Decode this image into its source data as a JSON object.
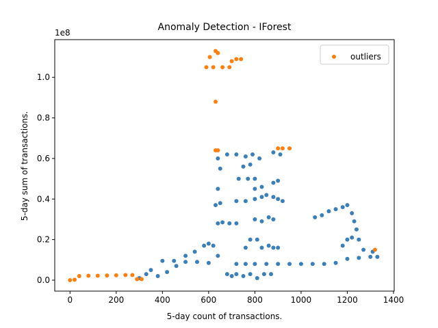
{
  "chart_data": {
    "type": "scatter",
    "title": "Anomaly Detection - IForest",
    "x_label": "5-day count of transactions.",
    "y_label": "5-day sum of transactions.",
    "y_offset_label": "1e8",
    "xlim": [
      -66,
      1403
    ],
    "ylim": [
      -0.054,
      1.186
    ],
    "xticks": [
      0,
      200,
      400,
      600,
      800,
      1000,
      1200,
      1400
    ],
    "yticks": [
      {
        "value": 0,
        "label": "0.0"
      },
      {
        "value": 0.2,
        "label": "0.2"
      },
      {
        "value": 0.4,
        "label": "0.4"
      },
      {
        "value": 0.6,
        "label": "0.6"
      },
      {
        "value": 0.8,
        "label": "0.8"
      },
      {
        "value": 1.0,
        "label": "1.0"
      }
    ],
    "legend_position": "upper right",
    "series": [
      {
        "color": "#3b7fb8",
        "x": [
          720,
          760,
          800,
          850,
          900,
          950,
          1000,
          1050,
          1100,
          1150,
          1200,
          1250,
          1300,
          1330,
          400,
          450,
          500,
          550,
          600,
          300,
          330,
          350,
          380,
          420,
          460,
          500,
          540,
          580,
          600,
          620,
          640,
          680,
          700,
          720,
          750,
          780,
          810,
          840,
          870,
          760,
          830,
          860,
          880,
          900,
          780,
          810,
          640,
          660,
          690,
          720,
          800,
          830,
          860,
          880,
          630,
          650,
          720,
          760,
          800,
          830,
          850,
          880,
          900,
          920,
          640,
          800,
          830,
          730,
          770,
          800,
          880,
          900,
          650,
          750,
          780,
          640,
          680,
          720,
          760,
          790,
          820,
          880,
          910,
          1060,
          1090,
          1120,
          1150,
          1180,
          1200,
          1220,
          1230,
          1240,
          1200,
          1180,
          1220,
          1250,
          1270,
          1310
        ],
        "y": [
          0.08,
          0.08,
          0.08,
          0.08,
          0.08,
          0.08,
          0.08,
          0.08,
          0.08,
          0.085,
          0.105,
          0.11,
          0.115,
          0.115,
          0.095,
          0.095,
          0.09,
          0.09,
          0.085,
          0.01,
          0.03,
          0.05,
          0.02,
          0.04,
          0.07,
          0.12,
          0.14,
          0.17,
          0.18,
          0.17,
          0.12,
          0.03,
          0.02,
          0.03,
          0.02,
          0.03,
          0.01,
          0.03,
          0.03,
          0.16,
          0.16,
          0.17,
          0.16,
          0.16,
          0.2,
          0.2,
          0.28,
          0.285,
          0.28,
          0.28,
          0.3,
          0.29,
          0.31,
          0.3,
          0.37,
          0.38,
          0.39,
          0.39,
          0.4,
          0.41,
          0.42,
          0.41,
          0.4,
          0.39,
          0.45,
          0.45,
          0.46,
          0.5,
          0.5,
          0.5,
          0.48,
          0.49,
          0.55,
          0.56,
          0.57,
          0.6,
          0.62,
          0.62,
          0.61,
          0.62,
          0.6,
          0.63,
          0.62,
          0.31,
          0.32,
          0.34,
          0.35,
          0.36,
          0.37,
          0.33,
          0.29,
          0.25,
          0.2,
          0.17,
          0.21,
          0.2,
          0.15,
          0.14
        ]
      },
      {
        "name": "outliers",
        "color": "#ff7f0e",
        "x": [
          0,
          20,
          40,
          80,
          120,
          160,
          200,
          240,
          270,
          290,
          310,
          590,
          620,
          630,
          640,
          660,
          690,
          700,
          720,
          740,
          605,
          630,
          630,
          640,
          900,
          920,
          950,
          1320
        ],
        "y": [
          0,
          0.002,
          0.02,
          0.022,
          0.022,
          0.023,
          0.024,
          0.025,
          0.025,
          0.005,
          0.005,
          1.05,
          1.05,
          1.13,
          1.12,
          1.05,
          1.05,
          1.08,
          1.09,
          1.09,
          1.1,
          0.88,
          0.64,
          0.64,
          0.65,
          0.65,
          0.65,
          0.15
        ]
      }
    ]
  }
}
